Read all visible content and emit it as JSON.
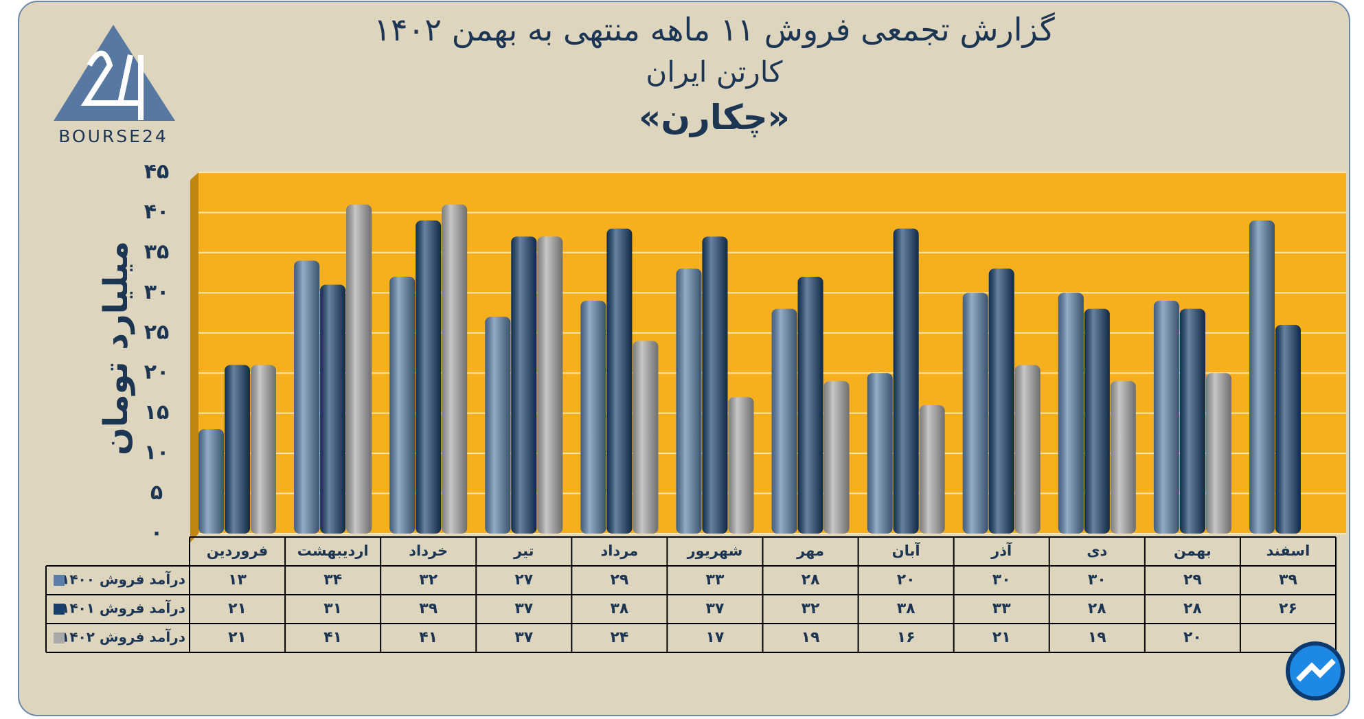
{
  "brand": "BOURSE24",
  "chart_data": {
    "type": "bar",
    "title": "گزارش تجمعی فروش ۱۱ ماهه منتهی به بهمن ۱۴۰۲",
    "subtitle": "کارتن ایران",
    "symbol": "«چکارن»",
    "y_label": "میلیارد تومان",
    "categories": [
      "فروردین",
      "اردیبهشت",
      "خرداد",
      "تیر",
      "مرداد",
      "شهریور",
      "مهر",
      "آبان",
      "آذر",
      "دی",
      "بهمن",
      "اسفند"
    ],
    "series": [
      {
        "name": "درآمد فروش ۱۴۰۰",
        "color": "#5a7fa8",
        "values": [
          13,
          34,
          32,
          27,
          29,
          33,
          28,
          20,
          30,
          30,
          29,
          39
        ],
        "value_labels": [
          "۱۳",
          "۳۴",
          "۳۲",
          "۲۷",
          "۲۹",
          "۳۳",
          "۲۸",
          "۲۰",
          "۳۰",
          "۳۰",
          "۲۹",
          "۳۹"
        ]
      },
      {
        "name": "درآمد فروش ۱۴۰۱",
        "color": "#173f6b",
        "values": [
          21,
          31,
          39,
          37,
          38,
          37,
          32,
          38,
          33,
          28,
          28,
          26
        ],
        "value_labels": [
          "۲۱",
          "۳۱",
          "۳۹",
          "۳۷",
          "۳۸",
          "۳۷",
          "۳۲",
          "۳۸",
          "۳۳",
          "۲۸",
          "۲۸",
          "۲۶"
        ]
      },
      {
        "name": "درآمد فروش ۱۴۰۲",
        "color": "#a9a9a9",
        "values": [
          21,
          41,
          41,
          37,
          24,
          17,
          19,
          16,
          21,
          19,
          20,
          null
        ],
        "value_labels": [
          "۲۱",
          "۴۱",
          "۴۱",
          "۳۷",
          "۲۴",
          "۱۷",
          "۱۹",
          "۱۶",
          "۲۱",
          "۱۹",
          "۲۰",
          null
        ]
      }
    ],
    "ylim": [
      0,
      45
    ],
    "yticks": [
      {
        "value": 0,
        "label": "۰"
      },
      {
        "value": 5,
        "label": "۵"
      },
      {
        "value": 10,
        "label": "۱۰"
      },
      {
        "value": 15,
        "label": "۱۵"
      },
      {
        "value": 20,
        "label": "۲۰"
      },
      {
        "value": 25,
        "label": "۲۵"
      },
      {
        "value": 30,
        "label": "۳۰"
      },
      {
        "value": 35,
        "label": "۳۵"
      },
      {
        "value": 40,
        "label": "۴۰"
      },
      {
        "value": 45,
        "label": "۴۵"
      }
    ],
    "grid": true,
    "plot_color": "#f7b01d"
  }
}
